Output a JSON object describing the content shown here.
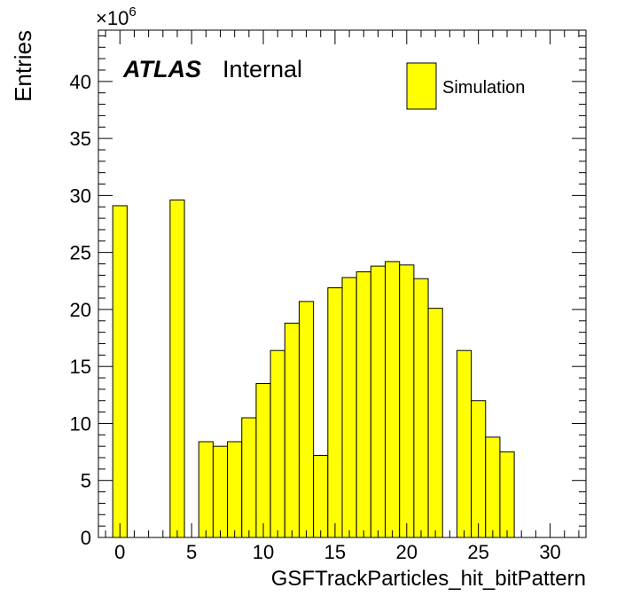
{
  "chart_data": {
    "type": "bar",
    "style": "step-histogram",
    "bin_width": 1,
    "x": [
      0,
      1,
      2,
      3,
      4,
      5,
      6,
      7,
      8,
      9,
      10,
      11,
      12,
      13,
      14,
      15,
      16,
      17,
      18,
      19,
      20,
      21,
      22,
      23,
      24,
      25,
      26,
      27,
      28,
      29,
      30,
      31
    ],
    "values": [
      29.1,
      0,
      0,
      0,
      29.6,
      0,
      8.4,
      8.0,
      8.4,
      10.5,
      13.5,
      16.4,
      18.8,
      20.7,
      7.2,
      21.9,
      22.8,
      23.3,
      23.8,
      24.2,
      23.9,
      22.7,
      20.1,
      0,
      16.4,
      12.0,
      8.8,
      7.5,
      0,
      0,
      0,
      0
    ],
    "xlim": [
      -1.5,
      32.5
    ],
    "ylim": [
      0,
      44.5
    ],
    "y_multiplier": "×10",
    "y_multiplier_exponent": "6",
    "xlabel": "GSFTrackParticles_hit_bitPattern",
    "ylabel": "Entries",
    "x_ticks": [
      0,
      5,
      10,
      15,
      20,
      25,
      30
    ],
    "y_ticks": [
      0,
      5,
      10,
      15,
      20,
      25,
      30,
      35,
      40
    ],
    "fill_color": "#ffff00",
    "edge_color": "#000000",
    "grid": false,
    "legend": {
      "position": "top-right",
      "entries": [
        "Simulation"
      ]
    },
    "annotations": {
      "experiment": "ATLAS",
      "status": "Internal"
    }
  }
}
